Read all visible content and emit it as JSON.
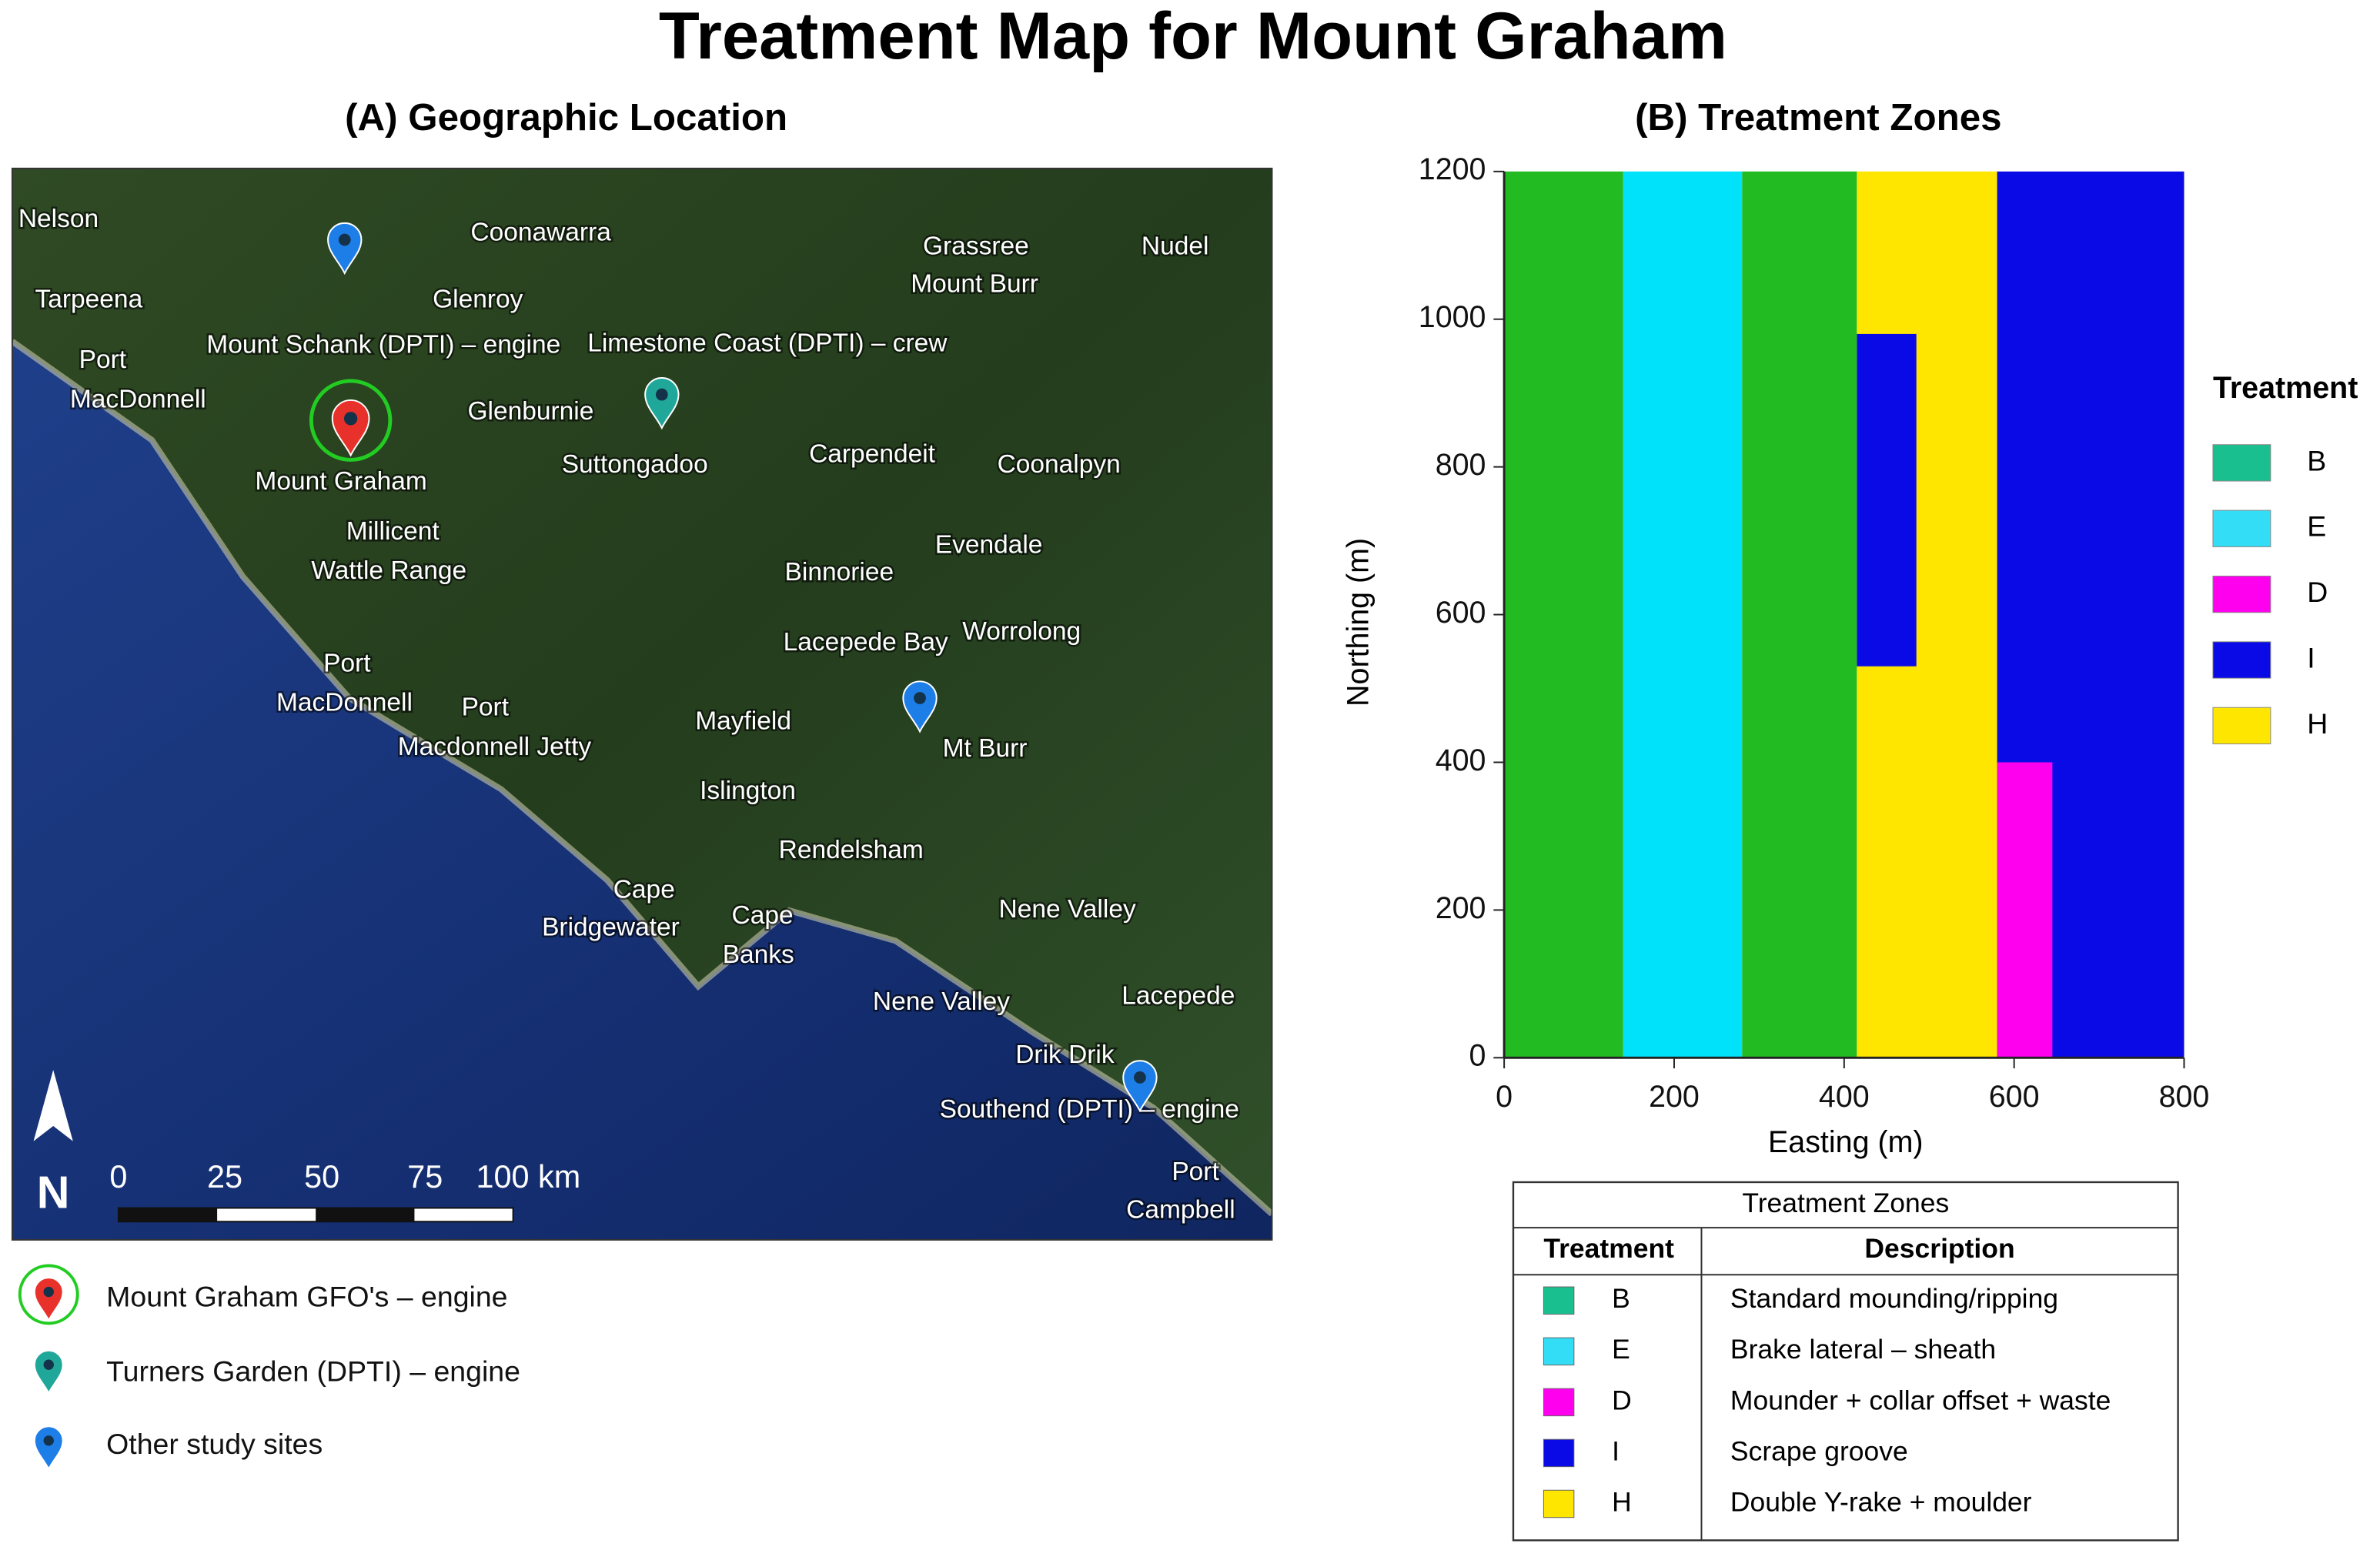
{
  "title": "Treatment Map for Mount Graham",
  "map": {
    "title": "(A) Geographic Location",
    "labels": [
      "Nelson",
      "Coonawarra",
      "Grassree",
      "Nudel",
      "Tarpeena",
      "Glenroy",
      "Mount Burr",
      "Mount Schank (DPTI) – engine",
      "Limestone Coast (DPTI) – crew",
      "Port",
      "MacDonnell",
      "Glenburnie",
      "Suttongadoo",
      "Carpendeit",
      "Coonalpyn",
      "Mount Graham",
      "Millicent",
      "Evendale",
      "Wattle Range",
      "Binnoriee",
      "Lacepede Bay",
      "Worrolong",
      "Port",
      "MacDonnell",
      "Port",
      "Macdonnell Jetty",
      "Mayfield",
      "Mt Burr",
      "Islington",
      "Rendelsham",
      "Cape",
      "Bridgewater",
      "Cape",
      "Banks",
      "Nene Valley",
      "Nene Valley",
      "Lacepede",
      "Drik Drik",
      "Southend (DPTI) – engine",
      "Port",
      "Campbell"
    ],
    "north": "N",
    "scale_labels": [
      "0",
      "25",
      "50",
      "75",
      "100 km"
    ],
    "legend": [
      "Mount Graham GFO's – engine",
      "Turners Garden (DPTI) – engine",
      "Other study sites"
    ]
  },
  "chart_data": {
    "type": "zones",
    "title": "(B) Treatment Zones",
    "x_label": "Easting (m)",
    "y_label": "Northing (m)",
    "xlim": [
      0,
      800
    ],
    "ylim": [
      0,
      1200
    ],
    "xticks": [
      0,
      200,
      400,
      600,
      800
    ],
    "yticks": [
      0,
      200,
      400,
      600,
      800,
      1000,
      1200
    ],
    "zones": [
      {
        "color": "#22bb22",
        "x": [
          0,
          140
        ],
        "y": [
          0,
          1200
        ]
      },
      {
        "color": "#00e1fa",
        "x": [
          140,
          280
        ],
        "y": [
          0,
          1200
        ]
      },
      {
        "color": "#22bb22",
        "x": [
          280,
          415
        ],
        "y": [
          0,
          1200
        ]
      },
      {
        "color": "#ffe600",
        "x": [
          415,
          580
        ],
        "y": [
          0,
          1200
        ]
      },
      {
        "color": "#0a0ae6",
        "x": [
          415,
          485
        ],
        "y": [
          530,
          980
        ]
      },
      {
        "color": "#0a0ae6",
        "x": [
          580,
          800
        ],
        "y": [
          0,
          1200
        ]
      },
      {
        "color": "#ff00ee",
        "x": [
          580,
          645
        ],
        "y": [
          0,
          400
        ]
      }
    ],
    "legend_title": "Treatment",
    "treatments": [
      {
        "name": "B",
        "color": "#1abf8f"
      },
      {
        "name": "E",
        "color": "#33ddf5"
      },
      {
        "name": "D",
        "color": "#ff00ee"
      },
      {
        "name": "I",
        "color": "#0a0ae6"
      },
      {
        "name": "H",
        "color": "#ffe600"
      }
    ]
  },
  "table": {
    "title": "Treatment Zones",
    "header": [
      "Treatment",
      "Description"
    ],
    "rows": [
      {
        "color": "#1abf8f",
        "cells": [
          "B",
          "Standard mounding/ripping"
        ]
      },
      {
        "color": "#33ddf5",
        "cells": [
          "E",
          "Brake lateral – sheath"
        ]
      },
      {
        "color": "#ff00ee",
        "cells": [
          "D",
          "Mounder + collar offset + waste"
        ]
      },
      {
        "color": "#0a0ae6",
        "cells": [
          "I",
          "Scrape groove"
        ]
      },
      {
        "color": "#ffe600",
        "cells": [
          "H",
          "Double Y-rake + moulder"
        ]
      }
    ]
  }
}
